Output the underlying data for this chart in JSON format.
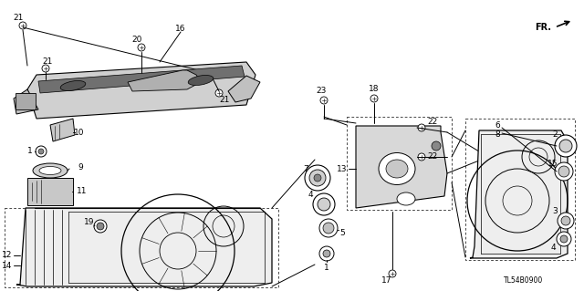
{
  "bg_color": "#ffffff",
  "diagram_code": "TL54B0900",
  "lc": "#000000",
  "fs": 6.5
}
